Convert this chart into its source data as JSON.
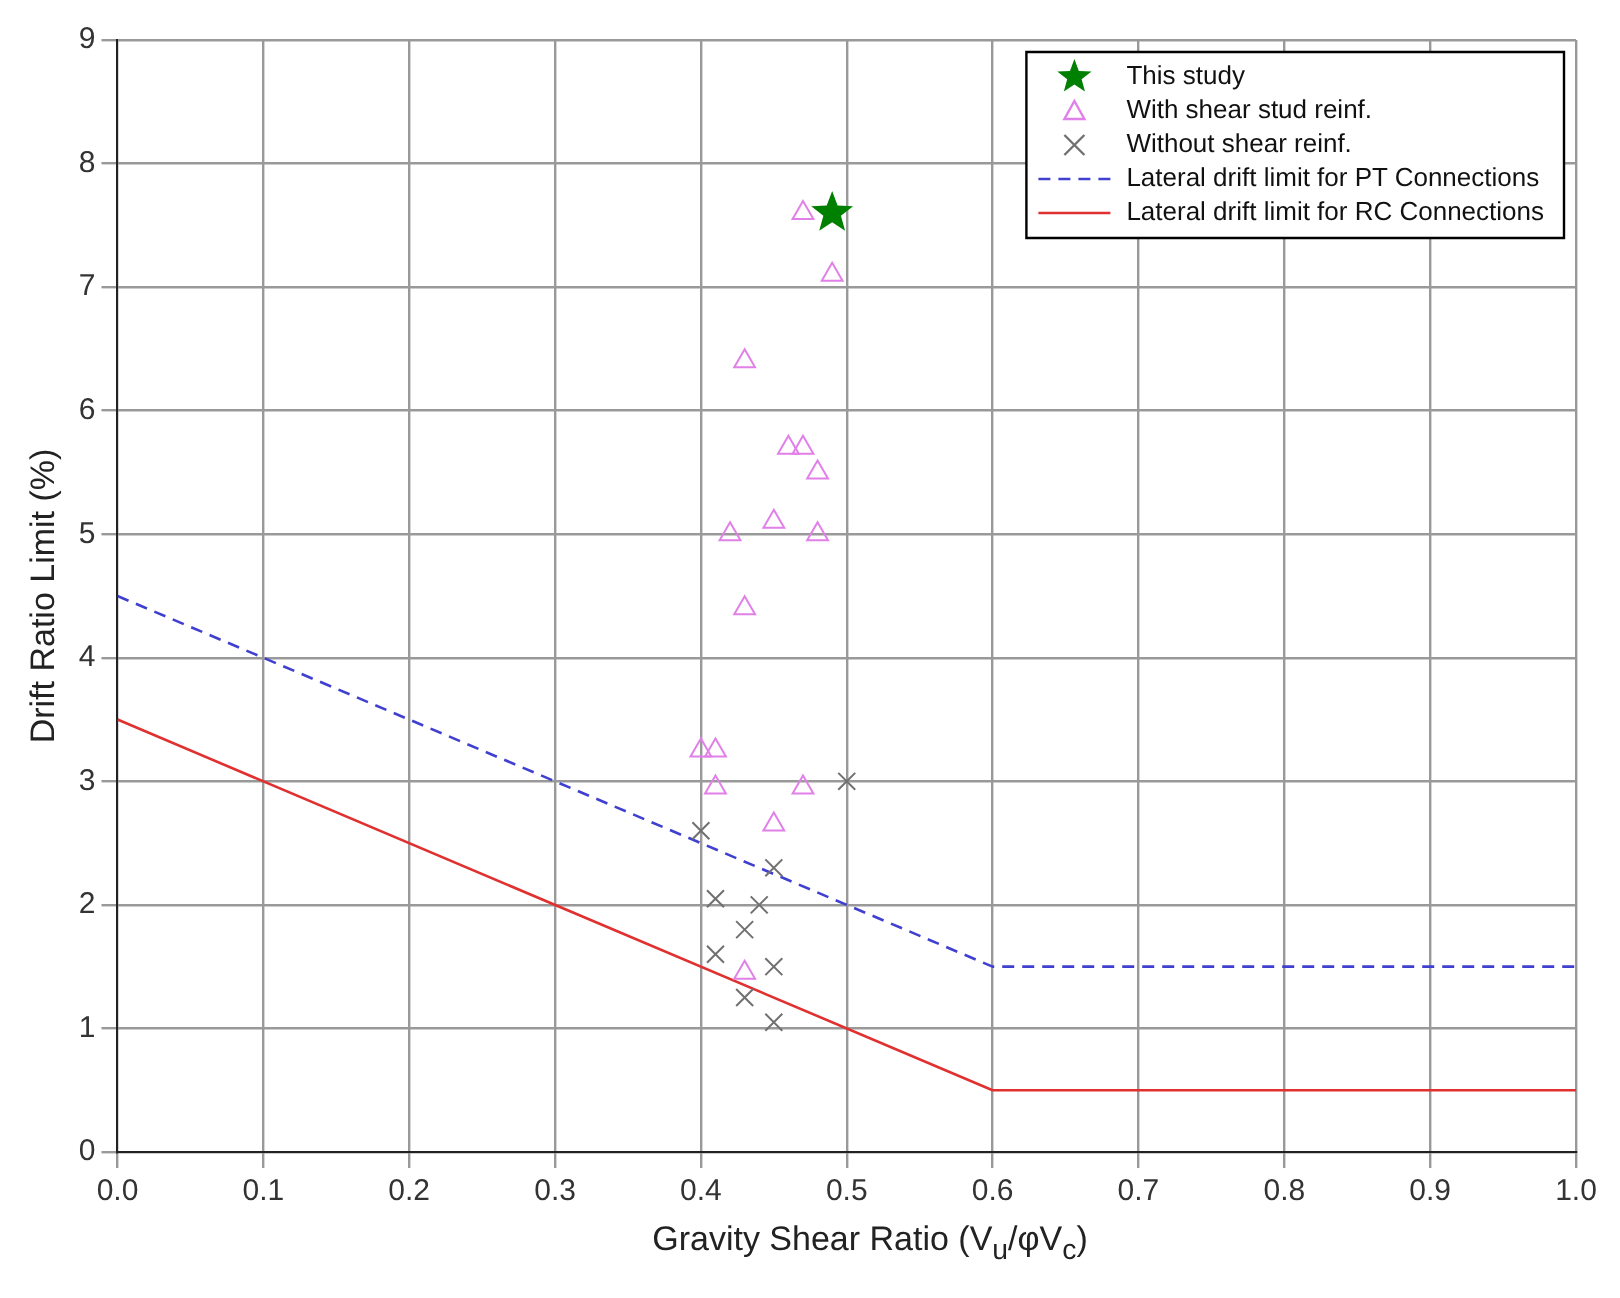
{
  "chart_data": {
    "type": "scatter",
    "xlabel": "Gravity Shear Ratio (V$_{u}$/φV$_{c}$)",
    "ylabel": "Drift Ratio Limit (%)",
    "xlim": [
      0,
      1
    ],
    "xticks": [
      {
        "value": 0,
        "label": "0.0"
      },
      0.1,
      0.2,
      0.3,
      0.4,
      0.5,
      0.6,
      0.7,
      0.8,
      0.9,
      {
        "value": 1,
        "label": "1.0"
      }
    ],
    "ylim": [
      0,
      9
    ],
    "yticks": [
      0,
      1,
      2,
      3,
      4,
      5,
      6,
      7,
      8,
      9
    ],
    "grid": true,
    "legend": "top right",
    "series": [
      {
        "name": "This study",
        "type": "scatter",
        "marker": "star",
        "color": "#008000",
        "x": [
          0.49
        ],
        "values": [
          7.6
        ]
      },
      {
        "name": "With shear stud reinf.",
        "type": "scatter",
        "marker": "triangle",
        "color": "#e080e8",
        "x": [
          0.47,
          0.49,
          0.43,
          0.46,
          0.47,
          0.48,
          0.42,
          0.45,
          0.48,
          0.43,
          0.4,
          0.41,
          0.41,
          0.47,
          0.45,
          0.43
        ],
        "values": [
          7.6,
          7.1,
          6.4,
          5.7,
          5.7,
          5.5,
          5.0,
          5.1,
          5.0,
          4.4,
          3.25,
          3.25,
          2.95,
          2.95,
          2.65,
          1.45
        ]
      },
      {
        "name": "Without shear reinf.",
        "type": "scatter",
        "marker": "cross",
        "color": "#707070",
        "x": [
          0.5,
          0.4,
          0.45,
          0.41,
          0.44,
          0.43,
          0.41,
          0.45,
          0.43,
          0.45
        ],
        "values": [
          3.0,
          2.6,
          2.3,
          2.05,
          2.0,
          1.8,
          1.6,
          1.5,
          1.25,
          1.05
        ]
      },
      {
        "name": "Lateral drift limit for PT Connections",
        "type": "line",
        "marker": "none",
        "line_style": "dashed",
        "color": "#4040d0",
        "x": [
          0,
          0.6,
          1
        ],
        "values": [
          4.5,
          1.5,
          1.5
        ]
      },
      {
        "name": "Lateral drift limit for RC Connections",
        "type": "line",
        "marker": "none",
        "line_style": "solid",
        "color": "#e03030",
        "x": [
          0,
          0.6,
          1
        ],
        "values": [
          3.5,
          0.5,
          0.5
        ]
      }
    ]
  }
}
